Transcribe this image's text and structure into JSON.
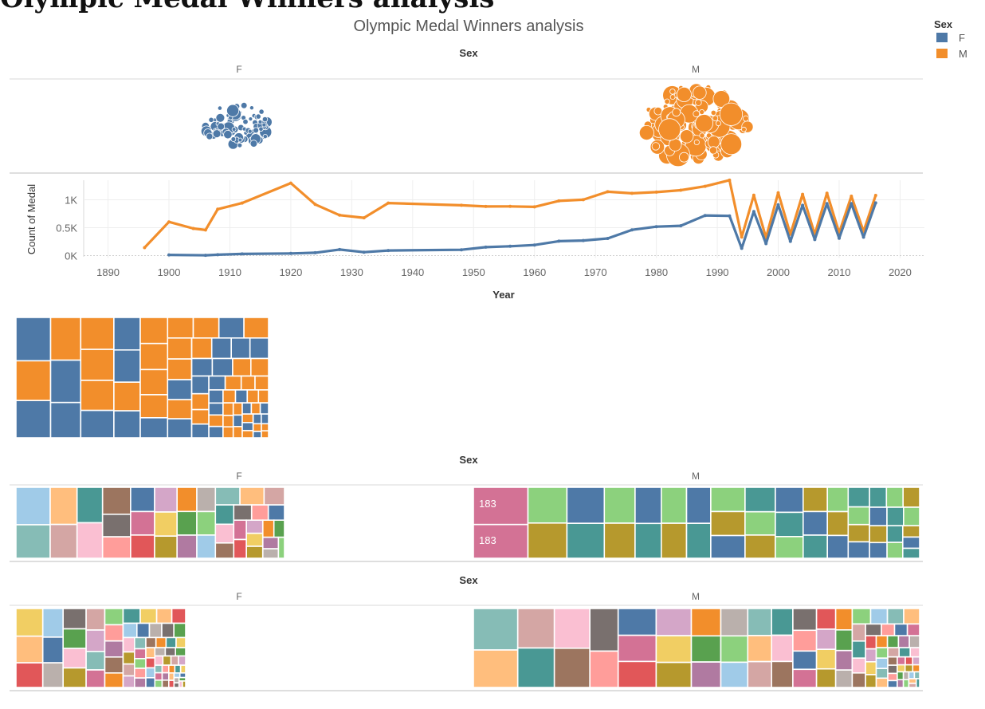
{
  "page": {
    "banner_text": "Olympic Medal Winners analysis",
    "title": "Olympic Medal Winners analysis"
  },
  "legend": {
    "title": "Sex",
    "items": [
      {
        "label": "F",
        "color": "#4e79a7"
      },
      {
        "label": "M",
        "color": "#f28e2b"
      }
    ]
  },
  "chart_data": [
    {
      "type": "scatter",
      "title": "Sex",
      "subtitle": "packed bubbles",
      "facets": [
        "F",
        "M"
      ],
      "bubble_counts": {
        "F": 90,
        "M": 150
      }
    },
    {
      "type": "line",
      "title": "",
      "xlabel": "Year",
      "ylabel": "Count of Medal",
      "xlim": [
        1886,
        2024
      ],
      "ylim": [
        0,
        1350
      ],
      "x_ticks": [
        "1890",
        "1900",
        "1910",
        "1920",
        "1930",
        "1940",
        "1950",
        "1960",
        "1970",
        "1980",
        "1990",
        "2000",
        "2010",
        "2020"
      ],
      "y_ticks": [
        {
          "value": 0,
          "label": "0K"
        },
        {
          "value": 500,
          "label": "0.5K"
        },
        {
          "value": 1000,
          "label": "1K"
        }
      ],
      "series": [
        {
          "name": "M",
          "color": "#f28e2b",
          "x": [
            1896,
            1900,
            1904,
            1906,
            1908,
            1912,
            1920,
            1924,
            1928,
            1932,
            1936,
            1948,
            1952,
            1956,
            1960,
            1964,
            1968,
            1972,
            1976,
            1980,
            1984,
            1988,
            1992,
            1994,
            1996,
            1998,
            2000,
            2002,
            2004,
            2006,
            2008,
            2010,
            2012,
            2014,
            2016
          ],
          "y": [
            143,
            604,
            486,
            458,
            831,
            941,
            1298,
            917,
            724,
            677,
            942,
            902,
            880,
            882,
            873,
            980,
            1001,
            1144,
            1116,
            1137,
            1171,
            1241,
            1351,
            331,
            1081,
            320,
            1126,
            381,
            1099,
            379,
            1118,
            408,
            1064,
            434,
            1079
          ]
        },
        {
          "name": "F",
          "color": "#4e79a7",
          "x": [
            1900,
            1906,
            1908,
            1912,
            1920,
            1924,
            1928,
            1932,
            1936,
            1948,
            1952,
            1956,
            1960,
            1964,
            1968,
            1972,
            1976,
            1980,
            1984,
            1988,
            1992,
            1994,
            1996,
            1998,
            2000,
            2002,
            2004,
            2006,
            2008,
            2010,
            2012,
            2014,
            2016
          ],
          "y": [
            13,
            6,
            15,
            30,
            39,
            51,
            108,
            62,
            92,
            104,
            151,
            167,
            190,
            258,
            270,
            307,
            462,
            519,
            535,
            719,
            711,
            130,
            789,
            214,
            912,
            255,
            902,
            287,
            931,
            312,
            931,
            330,
            944
          ]
        }
      ]
    },
    {
      "type": "heatmap",
      "title": "",
      "subtitle": "treemap of medal counts by Sex",
      "legend_ref": [
        "F",
        "M"
      ]
    },
    {
      "type": "heatmap",
      "title": "Sex",
      "subtitle": "treemap of medal counts by sport",
      "facets": [
        "F",
        "M"
      ],
      "data_labels": [
        {
          "facet": "M",
          "label": "183"
        },
        {
          "facet": "M",
          "label": "183"
        }
      ]
    },
    {
      "type": "heatmap",
      "title": "Sex",
      "subtitle": "treemap of medal counts by event",
      "facets": [
        "F",
        "M"
      ]
    }
  ]
}
